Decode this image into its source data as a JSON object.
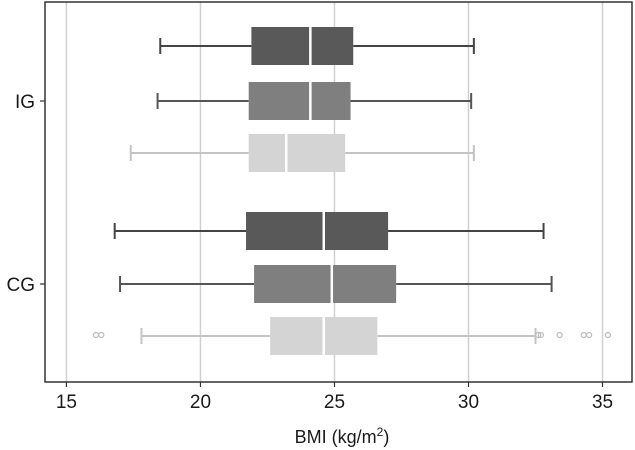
{
  "chart_data": {
    "type": "boxplot",
    "orientation": "horizontal",
    "xlabel_main": "BMI (kg/m",
    "xlabel_sup": "2",
    "xlabel_end": ")",
    "xlim": [
      14.2,
      36.1
    ],
    "xticks": [
      15,
      20,
      25,
      30,
      35
    ],
    "grid": "vertical",
    "categories": [
      "IG",
      "CG"
    ],
    "groups": [
      {
        "category": "IG",
        "boxes": [
          {
            "color": "#595959",
            "whisker_low": 18.5,
            "q1": 21.9,
            "median": 24.1,
            "q3": 25.7,
            "whisker_high": 30.2,
            "outliers": []
          },
          {
            "color": "#7f7f7f",
            "whisker_low": 18.4,
            "q1": 21.8,
            "median": 24.1,
            "q3": 25.6,
            "whisker_high": 30.1,
            "outliers": []
          },
          {
            "color": "#d4d4d4",
            "whisker_low": 17.4,
            "q1": 21.8,
            "median": 23.2,
            "q3": 25.4,
            "whisker_high": 30.2,
            "outliers": []
          }
        ]
      },
      {
        "category": "CG",
        "boxes": [
          {
            "color": "#595959",
            "whisker_low": 16.8,
            "q1": 21.7,
            "median": 24.6,
            "q3": 27.0,
            "whisker_high": 32.8,
            "outliers": []
          },
          {
            "color": "#7f7f7f",
            "whisker_low": 17.0,
            "q1": 22.0,
            "median": 24.9,
            "q3": 27.3,
            "whisker_high": 33.1,
            "outliers": []
          },
          {
            "color": "#d4d4d4",
            "whisker_low": 17.8,
            "q1": 22.6,
            "median": 24.6,
            "q3": 26.6,
            "whisker_high": 32.5,
            "outliers": [
              16.1,
              16.3,
              32.6,
              32.7,
              33.4,
              34.3,
              34.5,
              35.2
            ]
          }
        ]
      }
    ]
  }
}
